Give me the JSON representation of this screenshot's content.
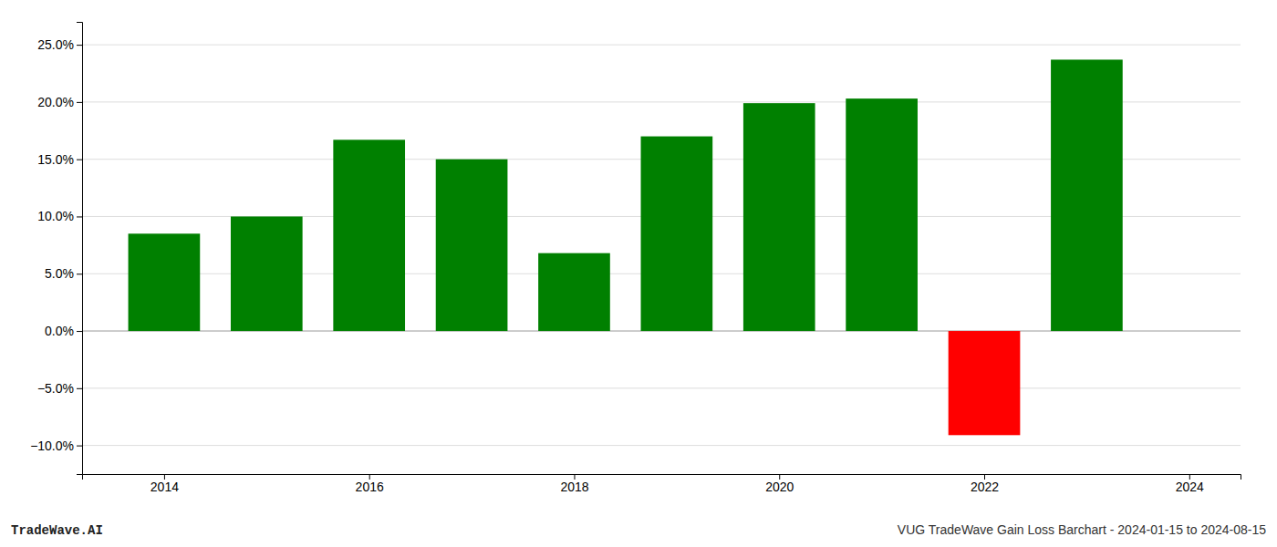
{
  "chart_data": {
    "type": "bar",
    "title": "VUG TradeWave Gain Loss Barchart - 2024-01-15 to 2024-08-15",
    "annotations": [
      "TradeWave.AI"
    ],
    "x": [
      2014,
      2015,
      2016,
      2017,
      2018,
      2019,
      2020,
      2021,
      2022,
      2023
    ],
    "values": [
      0.085,
      0.1,
      0.167,
      0.15,
      0.068,
      0.17,
      0.199,
      0.203,
      -0.091,
      0.237
    ],
    "colors": [
      "#008000",
      "#008000",
      "#008000",
      "#008000",
      "#008000",
      "#008000",
      "#008000",
      "#008000",
      "#ff0000",
      "#008000"
    ],
    "xlim": [
      2013.2,
      2024.5
    ],
    "xticks": [
      2014,
      2016,
      2018,
      2020,
      2022,
      2024
    ],
    "ylim": [
      -0.125,
      0.27
    ],
    "yticks": [
      {
        "value": -0.1,
        "label": "−10.0%"
      },
      {
        "value": -0.05,
        "label": "−5.0%"
      },
      {
        "value": 0.0,
        "label": "0.0%"
      },
      {
        "value": 0.05,
        "label": "5.0%"
      },
      {
        "value": 0.1,
        "label": "10.0%"
      },
      {
        "value": 0.15,
        "label": "15.0%"
      },
      {
        "value": 0.2,
        "label": "20.0%"
      },
      {
        "value": 0.25,
        "label": "25.0%"
      }
    ],
    "grid": true
  }
}
